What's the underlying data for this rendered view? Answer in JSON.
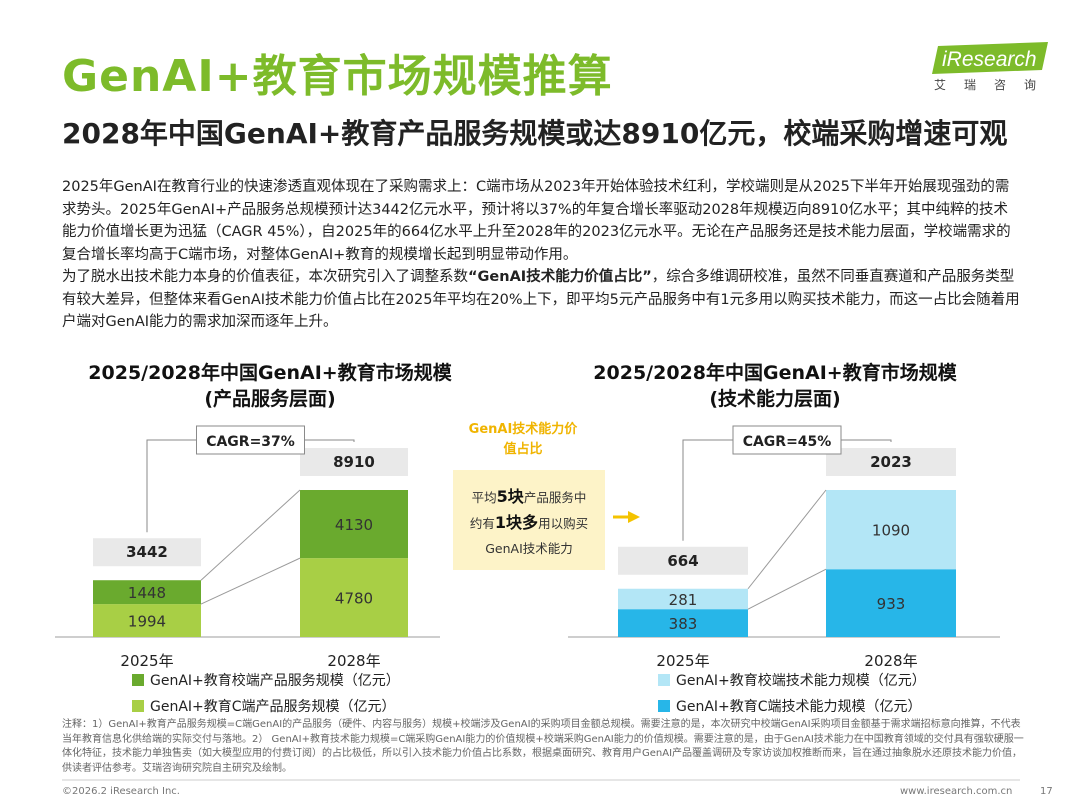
{
  "title": "GenAI+教育市场规模推算",
  "subtitle": "2028年中国GenAI+教育产品服务规模或达8910亿元，校端采购增速可观",
  "logo": {
    "text": "iResearch",
    "cn": "艾瑞咨询"
  },
  "body": {
    "para1": "2025年GenAI在教育行业的快速渗透直观体现在了采购需求上：C端市场从2023年开始体验技术红利，学校端则是从2025下半年开始展现强劲的需求势头。2025年GenAI+产品服务总规模预计达3442亿元水平，预计将以37%的年复合增长率驱动2028年规模迈向8910亿水平；其中纯粹的技术能力价值增长更为迅猛（CAGR 45%），自2025年的664亿水平上升至2028年的2023亿元水平。无论在产品服务还是技术能力层面，学校端需求的复合增长率均高于C端市场，对整体GenAI+教育的规模增长起到明显带动作用。",
    "para2_a": "为了脱水出技术能力本身的价值表征，本次研究引入了调整系数",
    "para2_bold": "“GenAI技术能力价值占比”",
    "para2_b": "，综合多维调研校准，虽然不同垂直赛道和产品服务类型有较大差异，但整体来看GenAI技术能力价值占比在2025年平均在20%上下，即平均5元产品服务中有1元多用以购买技术能力，而这一占比会随着用户端对GenAI能力的需求加深而逐年上升。"
  },
  "middle": {
    "label": "GenAI技术能力价值占比",
    "line1_a": "平均",
    "line1_bold": "5块",
    "line1_b": "产品服务中",
    "line2_a": "约有",
    "line2_bold": "1块多",
    "line2_b": "用以购买",
    "line3": "GenAI技术能力"
  },
  "chart_data": [
    {
      "type": "bar",
      "stacked": true,
      "title": "2025/2028年中国GenAI+教育市场规模",
      "subtitle": "(产品服务层面)",
      "categories": [
        "2025年",
        "2028年"
      ],
      "series": [
        {
          "name": "GenAI+教育C端产品服务规模（亿元）",
          "values": [
            1994,
            4780
          ],
          "color": "#a8cf45"
        },
        {
          "name": "GenAI+教育校端产品服务规模（亿元）",
          "values": [
            1448,
            4130
          ],
          "color": "#6aaa2e"
        }
      ],
      "totals": [
        3442,
        8910
      ],
      "cagr": "CAGR=37%",
      "ylim": [
        0,
        10500
      ]
    },
    {
      "type": "bar",
      "stacked": true,
      "title": "2025/2028年中国GenAI+教育市场规模",
      "subtitle": "(技术能力层面)",
      "categories": [
        "2025年",
        "2028年"
      ],
      "series": [
        {
          "name": "GenAI+教育C端技术能力规模（亿元）",
          "values": [
            383,
            933
          ],
          "color": "#27b6e8"
        },
        {
          "name": "GenAI+教育校端技术能力规模（亿元）",
          "values": [
            281,
            1090
          ],
          "color": "#b3e6f6"
        }
      ],
      "totals": [
        664,
        2023
      ],
      "cagr": "CAGR=45%",
      "ylim": [
        0,
        2600
      ]
    }
  ],
  "footnote": "注释：1）GenAI+教育产品服务规模=C端GenAI的产品服务（硬件、内容与服务）规模+校端涉及GenAI的采购项目金额总规模。需要注意的是，本次研究中校端GenAI采购项目金额基于需求端招标意向推算，不代表当年教育信息化供给端的实际交付与落地。2） GenAI+教育技术能力规模=C端采购GenAI能力的价值规模+校端采购GenAI能力的价值规模。需要注意的是，由于GenAI技术能力在中国教育领域的交付具有强软硬服一体化特征，技术能力单独售卖（如大模型应用的付费订阅）的占比极低，所以引入技术能力价值占比系数，根据桌面研究、教育用户GenAI产品覆盖调研及专家访谈加权推断而来，旨在通过抽象脱水还原技术能力价值，供读者评估参考。艾瑞咨询研究院自主研究及绘制。",
  "copyright": "©2026.2 iResearch Inc.",
  "website": "www.iresearch.com.cn",
  "page_number": "17"
}
